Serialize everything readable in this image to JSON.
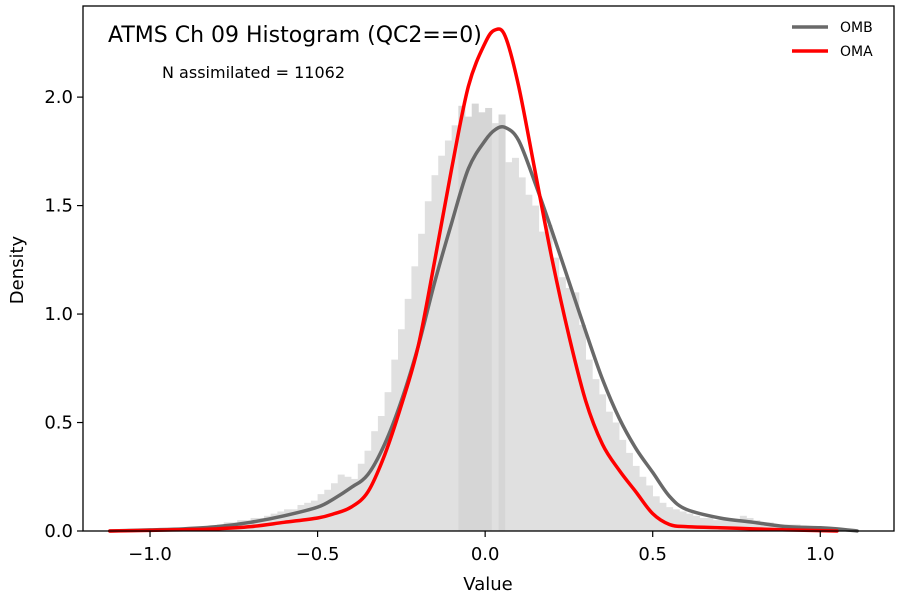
{
  "chart_data": {
    "type": "area",
    "title": "ATMS Ch 09 Histogram (QC2==0)",
    "annotation": "N assimilated = 11062",
    "xlabel": "Value",
    "ylabel": "Density",
    "xlim": [
      -1.2,
      1.22
    ],
    "ylim": [
      0,
      2.42
    ],
    "xticks": [
      -1.0,
      -0.5,
      0.0,
      0.5,
      1.0
    ],
    "xtick_labels": [
      "−1.0",
      "−0.5",
      "0.0",
      "0.5",
      "1.0"
    ],
    "yticks": [
      0.0,
      0.5,
      1.0,
      1.5,
      2.0
    ],
    "ytick_labels": [
      "0.0",
      "0.5",
      "1.0",
      "1.5",
      "2.0"
    ],
    "legend_position": "top-right",
    "colors": {
      "omb": "#696969",
      "oma": "#ff0000",
      "hist": "#e0e0e0",
      "hist_spike": "#d6d6d6"
    },
    "histogram": {
      "bin_width": 0.02,
      "bin_starts": [
        -0.8,
        -0.78,
        -0.76,
        -0.74,
        -0.72,
        -0.7,
        -0.68,
        -0.66,
        -0.64,
        -0.62,
        -0.6,
        -0.58,
        -0.56,
        -0.54,
        -0.52,
        -0.5,
        -0.48,
        -0.46,
        -0.44,
        -0.42,
        -0.4,
        -0.38,
        -0.36,
        -0.34,
        -0.32,
        -0.3,
        -0.28,
        -0.26,
        -0.24,
        -0.22,
        -0.2,
        -0.18,
        -0.16,
        -0.14,
        -0.12,
        -0.1,
        -0.08,
        -0.06,
        -0.04,
        -0.02,
        0.0,
        0.02,
        0.04,
        0.06,
        0.08,
        0.1,
        0.12,
        0.14,
        0.16,
        0.18,
        0.2,
        0.22,
        0.24,
        0.26,
        0.28,
        0.3,
        0.32,
        0.34,
        0.36,
        0.38,
        0.4,
        0.42,
        0.44,
        0.46,
        0.48,
        0.5,
        0.52,
        0.54,
        0.56,
        0.58,
        0.6,
        0.62,
        0.64,
        0.66,
        0.68,
        0.7,
        0.72,
        0.74,
        0.76,
        0.78,
        0.8,
        0.82,
        0.84,
        0.86,
        0.88,
        0.9,
        0.92,
        0.94,
        0.96,
        0.98
      ],
      "values": [
        0.03,
        0.04,
        0.04,
        0.05,
        0.05,
        0.06,
        0.06,
        0.07,
        0.08,
        0.09,
        0.1,
        0.1,
        0.12,
        0.13,
        0.14,
        0.17,
        0.19,
        0.22,
        0.26,
        0.25,
        0.24,
        0.31,
        0.37,
        0.46,
        0.53,
        0.64,
        0.79,
        0.93,
        1.07,
        1.22,
        1.37,
        1.52,
        1.64,
        1.73,
        1.8,
        1.87,
        1.96,
        1.91,
        1.97,
        1.93,
        1.95,
        1.88,
        1.92,
        1.7,
        1.72,
        1.63,
        1.55,
        1.5,
        1.38,
        1.41,
        1.26,
        1.17,
        1.12,
        1.1,
        0.95,
        0.79,
        0.7,
        0.63,
        0.55,
        0.5,
        0.42,
        0.36,
        0.3,
        0.25,
        0.21,
        0.16,
        0.13,
        0.11,
        0.1,
        0.09,
        0.08,
        0.07,
        0.06,
        0.06,
        0.05,
        0.05,
        0.05,
        0.05,
        0.07,
        0.06,
        0.05,
        0.04,
        0.04,
        0.03,
        0.03,
        0.03,
        0.03,
        0.02,
        0.02,
        0.02
      ]
    },
    "series": [
      {
        "name": "OMB",
        "x": [
          -1.12,
          -1.0,
          -0.9,
          -0.8,
          -0.7,
          -0.6,
          -0.5,
          -0.45,
          -0.4,
          -0.35,
          -0.3,
          -0.25,
          -0.2,
          -0.15,
          -0.1,
          -0.05,
          0.0,
          0.03,
          0.06,
          0.1,
          0.15,
          0.2,
          0.25,
          0.3,
          0.35,
          0.4,
          0.45,
          0.5,
          0.55,
          0.6,
          0.7,
          0.8,
          0.9,
          1.0,
          1.05,
          1.11
        ],
        "y": [
          0.0,
          0.005,
          0.01,
          0.02,
          0.04,
          0.07,
          0.11,
          0.15,
          0.2,
          0.26,
          0.4,
          0.6,
          0.85,
          1.15,
          1.42,
          1.67,
          1.8,
          1.85,
          1.86,
          1.8,
          1.6,
          1.38,
          1.15,
          0.92,
          0.7,
          0.52,
          0.38,
          0.27,
          0.16,
          0.1,
          0.06,
          0.04,
          0.02,
          0.015,
          0.01,
          0.0
        ]
      },
      {
        "name": "OMA",
        "x": [
          -1.12,
          -1.0,
          -0.9,
          -0.8,
          -0.7,
          -0.6,
          -0.5,
          -0.45,
          -0.4,
          -0.35,
          -0.3,
          -0.25,
          -0.2,
          -0.15,
          -0.1,
          -0.05,
          0.0,
          0.03,
          0.06,
          0.1,
          0.15,
          0.2,
          0.25,
          0.3,
          0.35,
          0.4,
          0.45,
          0.5,
          0.55,
          0.6,
          0.7,
          0.8,
          0.9,
          1.0,
          1.05
        ],
        "y": [
          0.0,
          0.003,
          0.006,
          0.01,
          0.02,
          0.04,
          0.06,
          0.08,
          0.11,
          0.18,
          0.35,
          0.58,
          0.85,
          1.25,
          1.67,
          2.05,
          2.25,
          2.31,
          2.28,
          2.05,
          1.65,
          1.25,
          0.9,
          0.6,
          0.4,
          0.28,
          0.18,
          0.08,
          0.03,
          0.02,
          0.015,
          0.01,
          0.005,
          0.002,
          0.0
        ]
      }
    ]
  }
}
